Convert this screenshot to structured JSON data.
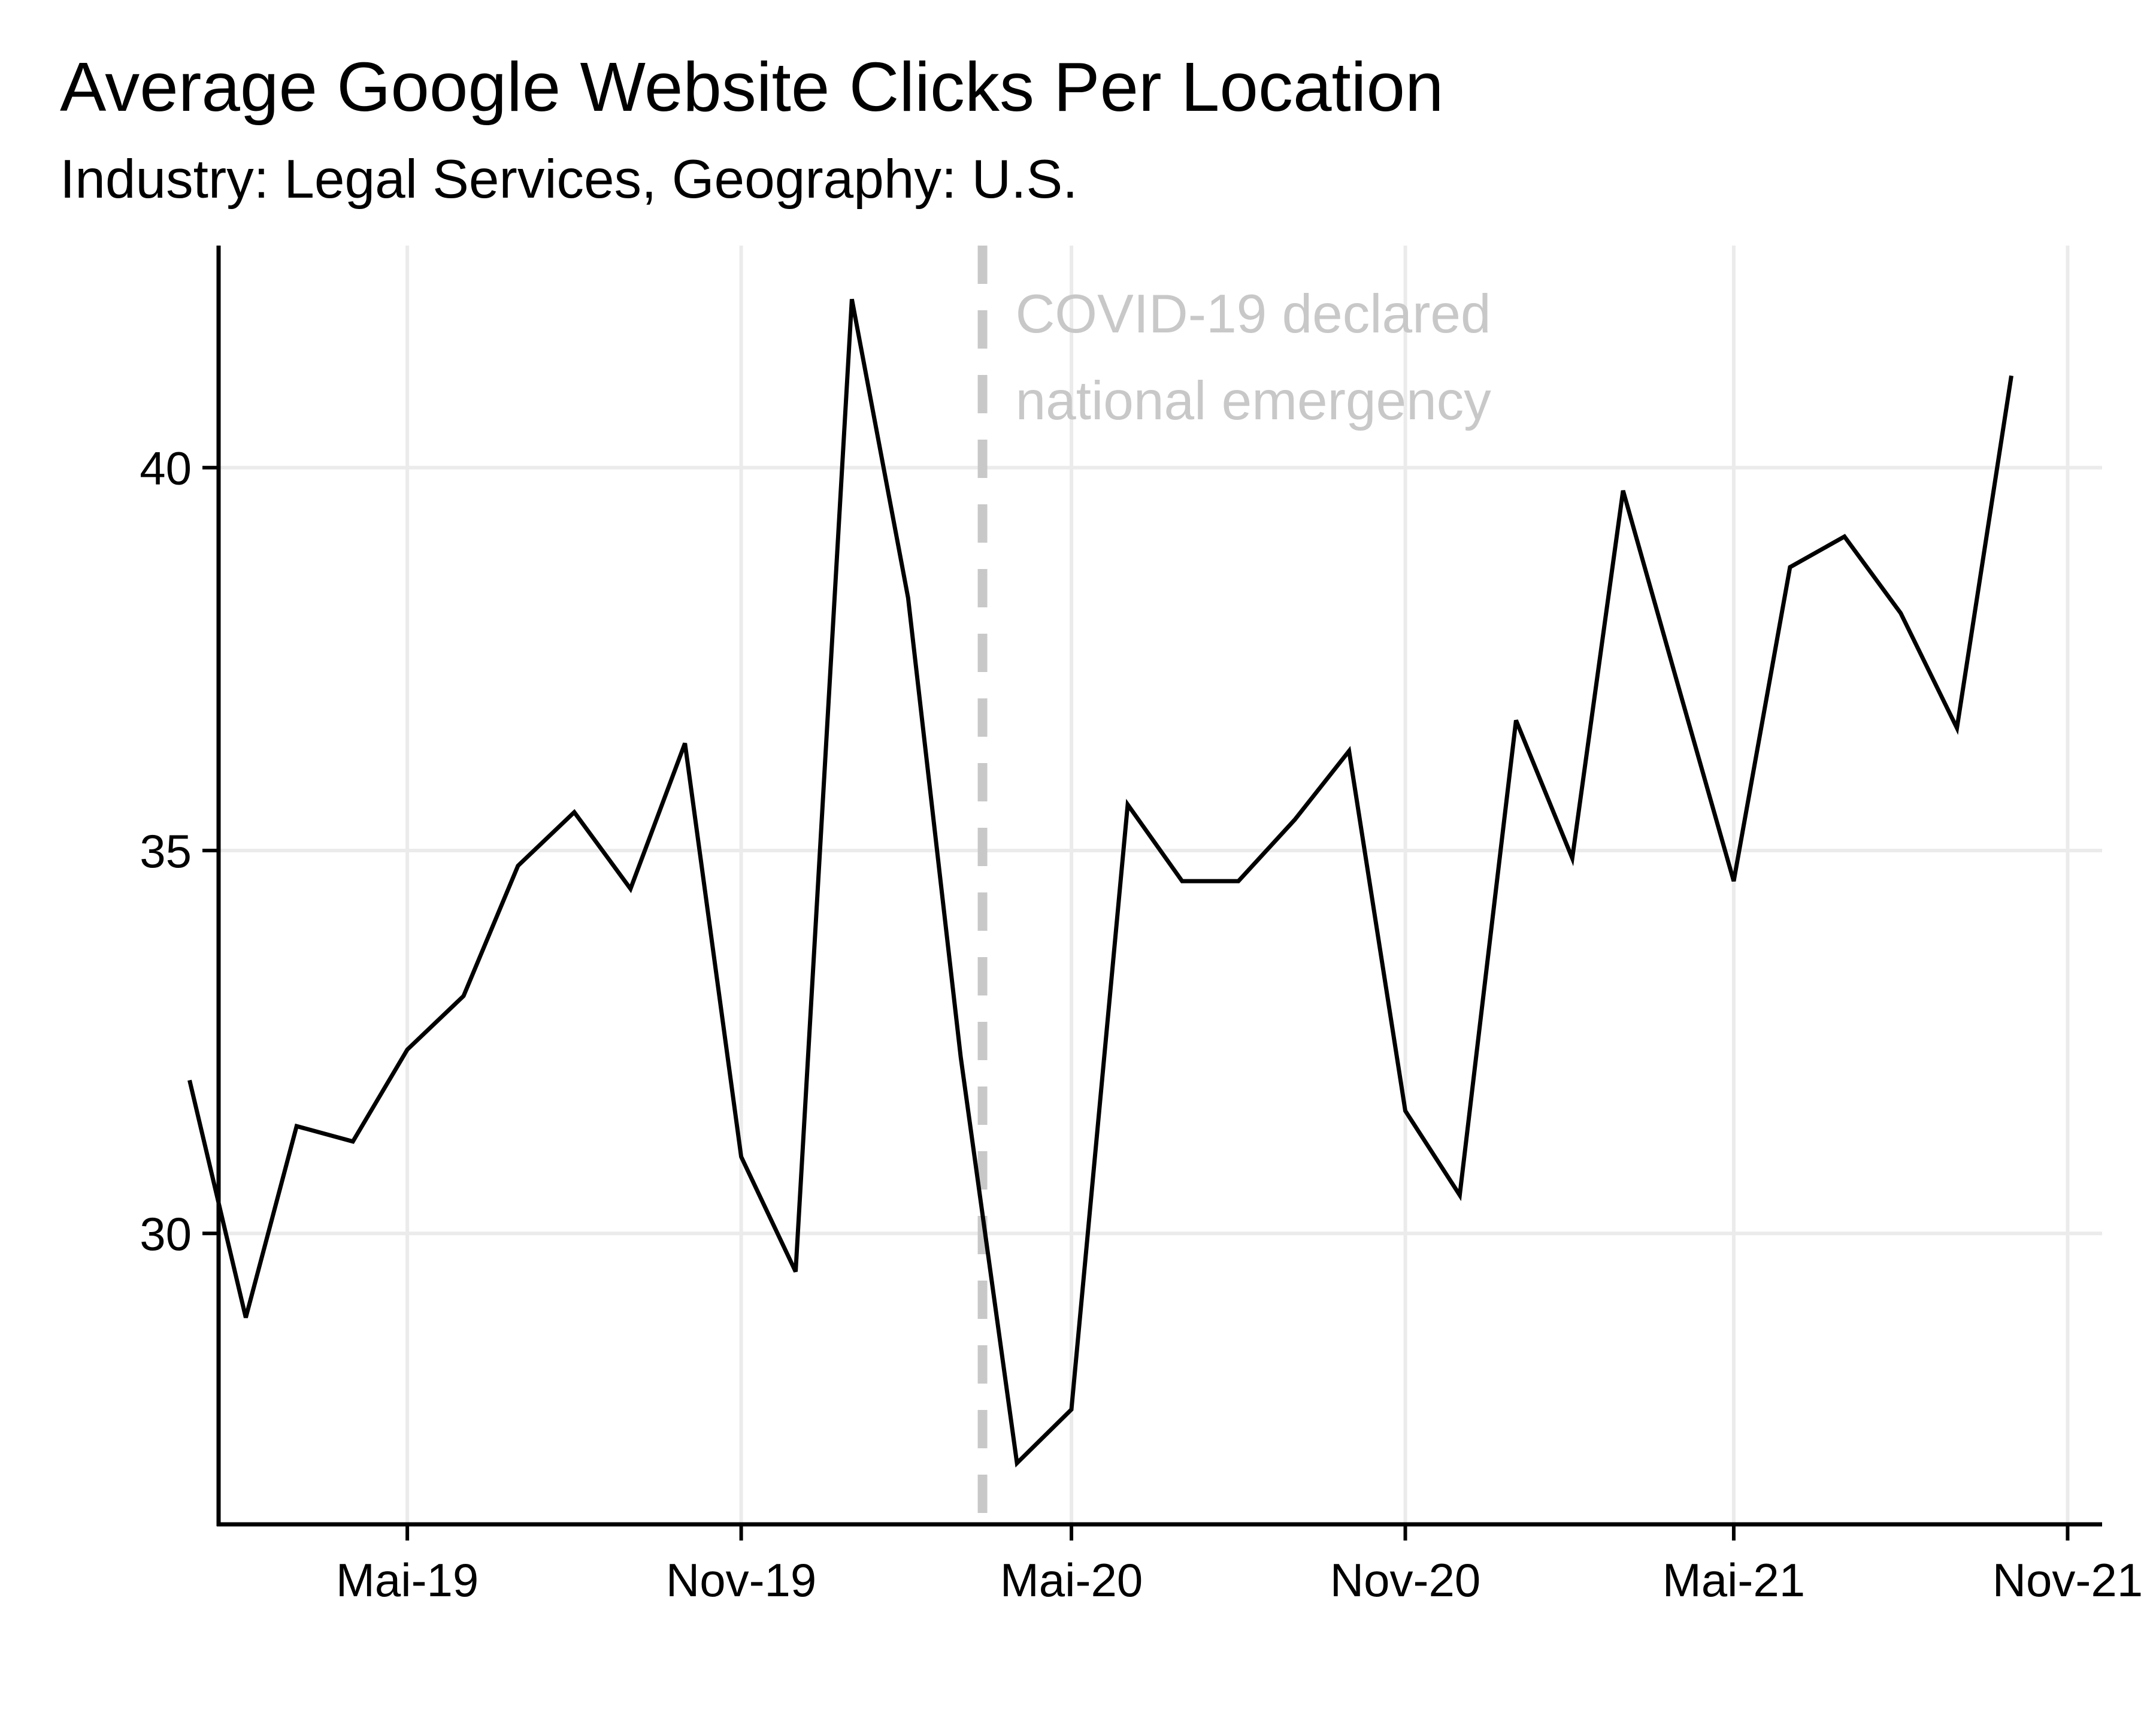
{
  "chart_data": {
    "type": "line",
    "title": "Average Google Website Clicks Per Location",
    "subtitle": "Industry: Legal Services, Geography: U.S.",
    "xlabel": "",
    "ylabel": "",
    "x_axis_type": "date",
    "xlim": [
      "2019-01-17",
      "2021-11-20"
    ],
    "ylim": [
      26.2,
      42.9
    ],
    "x_ticks": [
      {
        "date": "2019-05-01",
        "label": "Mai-19"
      },
      {
        "date": "2019-11-01",
        "label": "Nov-19"
      },
      {
        "date": "2020-05-01",
        "label": "Mai-20"
      },
      {
        "date": "2020-11-01",
        "label": "Nov-20"
      },
      {
        "date": "2021-05-01",
        "label": "Mai-21"
      },
      {
        "date": "2021-11-01",
        "label": "Nov-21"
      }
    ],
    "y_ticks": [
      30,
      35,
      40
    ],
    "grid": true,
    "line_color": "#000000",
    "grid_color": "#ebebeb",
    "annotation_color": "#c8c8c8",
    "series": [
      {
        "name": "",
        "points": [
          {
            "x": "2019-01-01",
            "y": 32.0
          },
          {
            "x": "2019-02-01",
            "y": 28.9
          },
          {
            "x": "2019-03-01",
            "y": 31.4
          },
          {
            "x": "2019-04-01",
            "y": 31.2
          },
          {
            "x": "2019-05-01",
            "y": 32.4
          },
          {
            "x": "2019-06-01",
            "y": 33.1
          },
          {
            "x": "2019-07-01",
            "y": 34.8
          },
          {
            "x": "2019-08-01",
            "y": 35.5
          },
          {
            "x": "2019-09-01",
            "y": 34.5
          },
          {
            "x": "2019-10-01",
            "y": 36.4
          },
          {
            "x": "2019-11-01",
            "y": 31.0
          },
          {
            "x": "2019-12-01",
            "y": 29.5
          },
          {
            "x": "2020-01-01",
            "y": 42.2
          },
          {
            "x": "2020-02-01",
            "y": 38.3
          },
          {
            "x": "2020-03-01",
            "y": 32.3
          },
          {
            "x": "2020-04-01",
            "y": 27.0
          },
          {
            "x": "2020-05-01",
            "y": 27.7
          },
          {
            "x": "2020-06-01",
            "y": 35.6
          },
          {
            "x": "2020-07-01",
            "y": 34.6
          },
          {
            "x": "2020-08-01",
            "y": 34.6
          },
          {
            "x": "2020-09-01",
            "y": 35.4
          },
          {
            "x": "2020-10-01",
            "y": 36.3
          },
          {
            "x": "2020-11-01",
            "y": 31.6
          },
          {
            "x": "2020-12-01",
            "y": 30.5
          },
          {
            "x": "2021-01-01",
            "y": 36.7
          },
          {
            "x": "2021-02-01",
            "y": 34.9
          },
          {
            "x": "2021-03-01",
            "y": 39.7
          },
          {
            "x": "2021-04-01",
            "y": 37.1
          },
          {
            "x": "2021-05-01",
            "y": 34.6
          },
          {
            "x": "2021-06-01",
            "y": 38.7
          },
          {
            "x": "2021-07-01",
            "y": 39.1
          },
          {
            "x": "2021-08-01",
            "y": 38.1
          },
          {
            "x": "2021-09-01",
            "y": 36.6
          },
          {
            "x": "2021-10-01",
            "y": 41.2
          }
        ]
      }
    ],
    "vline": {
      "date": "2020-03-13",
      "style": "dashed",
      "label_lines": [
        "COVID-19 declared",
        "national emergency"
      ]
    }
  }
}
